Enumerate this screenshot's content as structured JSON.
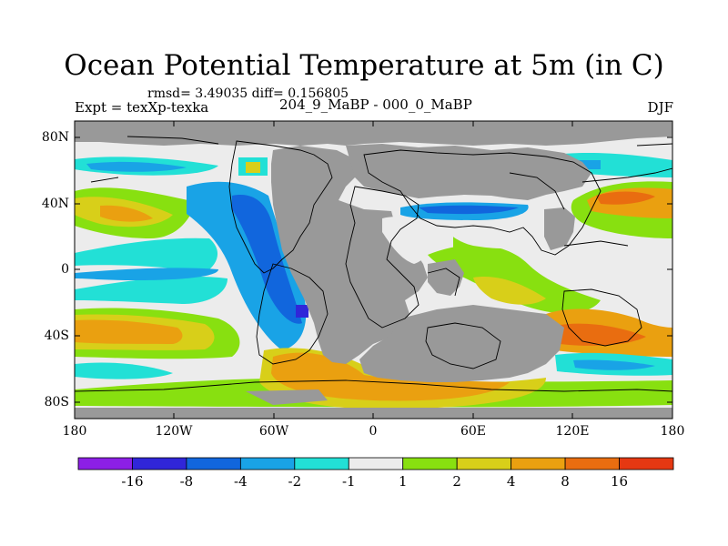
{
  "map": {
    "title": "Ocean Potential Temperature at 5m (in C)",
    "stats": "rmsd= 3.49035 diff= 0.156805",
    "experiment": "Expt = texXp-texka",
    "comparison": "204_9_MaBP - 000_0_MaBP",
    "season": "DJF",
    "lat_ticks": [
      "80N",
      "40N",
      "0",
      "40S",
      "80S"
    ],
    "lon_ticks": [
      "180",
      "120W",
      "60W",
      "0",
      "60E",
      "120E",
      "180"
    ]
  },
  "colorbar": {
    "labels": [
      "-16",
      "-8",
      "-4",
      "-2",
      "-1",
      "1",
      "2",
      "4",
      "8",
      "16"
    ],
    "colors": [
      "#8c1fe6",
      "#3026d9",
      "#1166dd",
      "#19a3e6",
      "#22e0d6",
      "#ececec",
      "#88e010",
      "#d8cf19",
      "#eaa010",
      "#e96d10",
      "#e53812"
    ]
  },
  "colors": {
    "land": "#999999"
  }
}
